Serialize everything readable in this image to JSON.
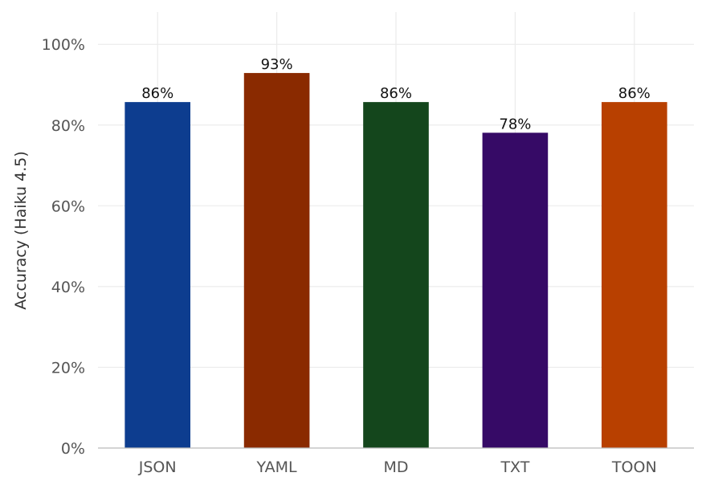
{
  "chart_data": {
    "type": "bar",
    "title": "",
    "xlabel": "",
    "ylabel": "Accuracy (Haiku 4.5)",
    "categories": [
      "JSON",
      "YAML",
      "MD",
      "TXT",
      "TOON"
    ],
    "values": [
      85.7,
      92.9,
      85.7,
      78.1,
      85.7
    ],
    "data_labels": [
      "86%",
      "93%",
      "86%",
      "78%",
      "86%"
    ],
    "colors": [
      "#0d3d8f",
      "#8a2a00",
      "#14461c",
      "#360a66",
      "#b84000"
    ],
    "yticks": [
      0,
      20,
      40,
      60,
      80,
      100
    ],
    "ytick_labels": [
      "0%",
      "20%",
      "40%",
      "60%",
      "80%",
      "100%"
    ],
    "ylim": [
      0,
      108
    ],
    "grid": true
  }
}
